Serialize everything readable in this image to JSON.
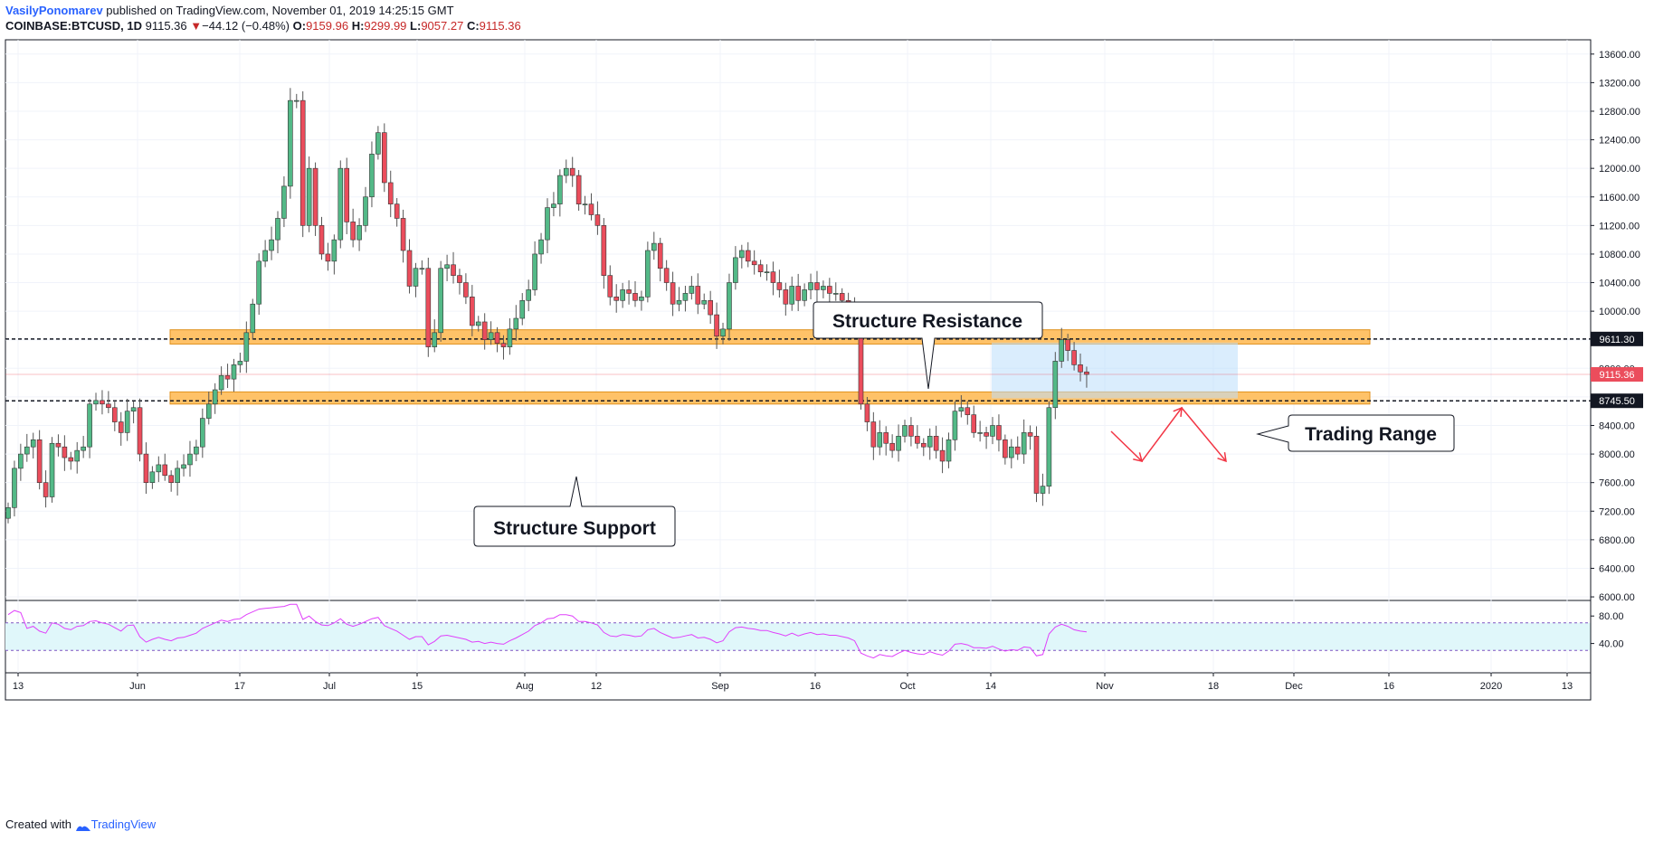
{
  "header": {
    "author": "VasilyPonomarev",
    "published": "published on TradingView.com, November 01, 2019 14:25:15 GMT",
    "symbol": "COINBASE:BTCUSD, 1D",
    "last": "9115.36",
    "arrow": "▼",
    "change": "−44.12 (−0.48%)",
    "o_label": "O:",
    "o_val": "9159.96",
    "h_label": "H:",
    "h_val": "9299.99",
    "l_label": "L:",
    "l_val": "9057.27",
    "c_label": "C:",
    "c_val": "9115.36"
  },
  "footer": {
    "created": "Created with",
    "brand": "TradingView"
  },
  "colors": {
    "up": "#53b987",
    "down": "#eb4d5c",
    "zone": "#ffb74d",
    "range": "#bbdefb",
    "rsi_line": "#e040fb",
    "rsi_fill": "#e0f7fa",
    "arrow": "#f23645"
  },
  "chart_data": {
    "type": "candlestick",
    "y_ticks": [
      "13600.00",
      "13200.00",
      "12800.00",
      "12400.00",
      "12000.00",
      "11600.00",
      "11200.00",
      "10800.00",
      "10400.00",
      "10000.00",
      "9600.00",
      "9200.00",
      "8800.00",
      "8400.00",
      "8000.00",
      "7600.00",
      "7200.00",
      "6800.00",
      "6400.00",
      "6000.00"
    ],
    "x_ticks": [
      "13",
      "Jun",
      "17",
      "Jul",
      "15",
      "Aug",
      "12",
      "Sep",
      "16",
      "Oct",
      "14",
      "Nov",
      "18",
      "Dec",
      "16",
      "2020",
      "13"
    ],
    "ylim": [
      5950,
      13800
    ],
    "price_labels": {
      "resistance": "9611.30",
      "current": "9115.36",
      "support": "8745.50"
    },
    "resistance_zone": [
      9540,
      9740
    ],
    "support_zone": [
      8700,
      8870
    ],
    "annotations": {
      "resistance": "Structure Resistance",
      "support": "Structure Support",
      "range": "Trading Range"
    },
    "rsi_ticks": [
      "80.00",
      "40.00"
    ],
    "rsi_levels": [
      70,
      30
    ],
    "closes": [
      7250,
      7800,
      8000,
      8100,
      8200,
      7600,
      7400,
      8150,
      8100,
      7950,
      7900,
      8050,
      8100,
      8700,
      8750,
      8700,
      8650,
      8450,
      8300,
      8600,
      8650,
      8000,
      7600,
      7750,
      7850,
      7700,
      7600,
      7800,
      7850,
      8000,
      8100,
      8500,
      8700,
      8900,
      9100,
      9050,
      9250,
      9300,
      9700,
      10100,
      10700,
      10850,
      11000,
      11300,
      11750,
      12950,
      12950,
      11200,
      12000,
      11200,
      10800,
      10700,
      11000,
      12000,
      11250,
      11000,
      11200,
      11600,
      12200,
      12500,
      11800,
      11500,
      11300,
      10850,
      10350,
      10600,
      10600,
      9500,
      9700,
      10600,
      10650,
      10500,
      10400,
      10200,
      9800,
      9850,
      9600,
      9700,
      9550,
      9500,
      9750,
      9900,
      10150,
      10300,
      10800,
      11000,
      11450,
      11500,
      11900,
      12000,
      11900,
      11500,
      11500,
      11350,
      11200,
      10500,
      10200,
      10150,
      10300,
      10250,
      10150,
      10200,
      10850,
      10950,
      10600,
      10400,
      10100,
      10150,
      10250,
      10350,
      10100,
      10150,
      9950,
      9650,
      9750,
      10400,
      10750,
      10850,
      10700,
      10650,
      10550,
      10550,
      10400,
      10300,
      10100,
      10350,
      10150,
      10300,
      10400,
      10300,
      10350,
      10250,
      10250,
      10150,
      10050,
      9850,
      8700,
      8450,
      8100,
      8300,
      8150,
      8050,
      8250,
      8400,
      8250,
      8150,
      8100,
      8250,
      8050,
      7900,
      8200,
      8600,
      8650,
      8550,
      8300,
      8300,
      8250,
      8400,
      8200,
      7950,
      8100,
      8000,
      8300,
      8250,
      7450,
      7550,
      8650,
      9300,
      9600,
      9450,
      9250,
      9150,
      9115
    ],
    "rsi": [
      82,
      88,
      85,
      62,
      65,
      58,
      55,
      70,
      68,
      62,
      60,
      65,
      66,
      72,
      73,
      70,
      68,
      63,
      58,
      66,
      67,
      50,
      42,
      46,
      49,
      46,
      44,
      48,
      49,
      52,
      55,
      62,
      66,
      70,
      74,
      72,
      75,
      76,
      82,
      86,
      90,
      91,
      92,
      93,
      94,
      97,
      97,
      75,
      80,
      72,
      67,
      66,
      70,
      76,
      68,
      65,
      68,
      72,
      76,
      78,
      66,
      62,
      58,
      52,
      46,
      50,
      50,
      38,
      43,
      51,
      52,
      50,
      48,
      46,
      42,
      43,
      40,
      42,
      40,
      39,
      44,
      48,
      53,
      58,
      66,
      70,
      76,
      77,
      82,
      82,
      80,
      72,
      72,
      70,
      67,
      56,
      51,
      50,
      53,
      52,
      50,
      51,
      60,
      62,
      56,
      52,
      48,
      49,
      51,
      53,
      48,
      49,
      46,
      41,
      44,
      57,
      63,
      64,
      62,
      61,
      59,
      59,
      56,
      54,
      51,
      55,
      51,
      54,
      56,
      53,
      54,
      52,
      52,
      50,
      48,
      44,
      26,
      22,
      19,
      24,
      22,
      21,
      26,
      30,
      27,
      25,
      24,
      28,
      25,
      23,
      29,
      39,
      40,
      38,
      34,
      34,
      33,
      36,
      32,
      29,
      31,
      30,
      35,
      34,
      22,
      24,
      54,
      64,
      68,
      65,
      60,
      58,
      57
    ]
  }
}
